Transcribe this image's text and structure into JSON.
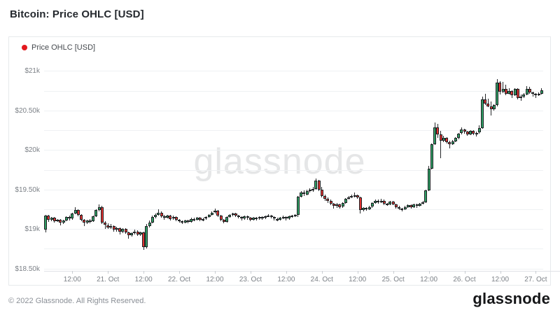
{
  "page": {
    "title": "Bitcoin: Price OHLC [USD]"
  },
  "legend": {
    "label": "Price OHLC [USD]",
    "dot_color": "#e3191f"
  },
  "watermark": "glassnode",
  "footer": {
    "copyright": "© 2022 Glassnode. All Rights Reserved.",
    "brand": "glassnode"
  },
  "chart_data": {
    "type": "candlestick",
    "title": "Bitcoin: Price OHLC [USD]",
    "series_name": "Price OHLC [USD]",
    "unit": "USD thousands",
    "interval": "1h",
    "x_start": "20. Oct 03:00",
    "x_end": "27. Oct 02:00",
    "ylim": [
      18.47,
      21.11
    ],
    "grid_step": 0.25,
    "legend_position": "top-left",
    "y_ticks": [
      {
        "value": 21.0,
        "label": "$21k"
      },
      {
        "value": 20.5,
        "label": "$20.50k"
      },
      {
        "value": 20.0,
        "label": "$20k"
      },
      {
        "value": 19.5,
        "label": "$19.50k"
      },
      {
        "value": 19.0,
        "label": "$19k"
      },
      {
        "value": 18.5,
        "label": "$18.50k"
      }
    ],
    "x_ticks": [
      {
        "index": 9,
        "label": "12:00"
      },
      {
        "index": 21,
        "label": "21. Oct"
      },
      {
        "index": 33,
        "label": "12:00"
      },
      {
        "index": 45,
        "label": "22. Oct"
      },
      {
        "index": 57,
        "label": "12:00"
      },
      {
        "index": 69,
        "label": "23. Oct"
      },
      {
        "index": 81,
        "label": "12:00"
      },
      {
        "index": 93,
        "label": "24. Oct"
      },
      {
        "index": 105,
        "label": "12:00"
      },
      {
        "index": 117,
        "label": "25. Oct"
      },
      {
        "index": 129,
        "label": "12:00"
      },
      {
        "index": 141,
        "label": "26. Oct"
      },
      {
        "index": 153,
        "label": "12:00"
      },
      {
        "index": 165,
        "label": "27. Oct"
      }
    ],
    "colors": {
      "up": "#2f9e64",
      "down": "#e03131",
      "outline": "#202325",
      "grid": "#eff1f3",
      "axis": "#dfe2e6",
      "tick_text": "#7c8187"
    },
    "candles": [
      [
        18.99,
        19.18,
        18.96,
        19.17
      ],
      [
        19.17,
        19.18,
        19.09,
        19.12
      ],
      [
        19.12,
        19.15,
        19.1,
        19.14
      ],
      [
        19.14,
        19.15,
        19.08,
        19.1
      ],
      [
        19.1,
        19.13,
        19.09,
        19.12
      ],
      [
        19.12,
        19.13,
        19.05,
        19.08
      ],
      [
        19.08,
        19.12,
        19.06,
        19.11
      ],
      [
        19.11,
        19.16,
        19.1,
        19.15
      ],
      [
        19.15,
        19.17,
        19.11,
        19.13
      ],
      [
        19.13,
        19.21,
        19.12,
        19.2
      ],
      [
        19.2,
        19.28,
        19.19,
        19.24
      ],
      [
        19.24,
        19.25,
        19.16,
        19.18
      ],
      [
        19.18,
        19.19,
        19.1,
        19.12
      ],
      [
        19.12,
        19.13,
        19.04,
        19.08
      ],
      [
        19.08,
        19.12,
        19.06,
        19.11
      ],
      [
        19.11,
        19.13,
        19.07,
        19.1
      ],
      [
        19.1,
        19.17,
        19.09,
        19.16
      ],
      [
        19.16,
        19.25,
        19.15,
        19.24
      ],
      [
        19.24,
        19.31,
        19.22,
        19.28
      ],
      [
        19.28,
        19.29,
        19.06,
        19.08
      ],
      [
        19.08,
        19.1,
        19.0,
        19.05
      ],
      [
        19.05,
        19.07,
        19.0,
        19.02
      ],
      [
        19.02,
        19.06,
        19.0,
        19.04
      ],
      [
        19.04,
        19.05,
        18.97,
        18.99
      ],
      [
        18.99,
        19.03,
        18.97,
        19.01
      ],
      [
        19.01,
        19.02,
        18.93,
        18.97
      ],
      [
        18.97,
        19.01,
        18.95,
        19.0
      ],
      [
        19.0,
        19.01,
        18.94,
        18.96
      ],
      [
        18.96,
        18.97,
        18.88,
        18.92
      ],
      [
        18.92,
        18.96,
        18.9,
        18.95
      ],
      [
        18.95,
        18.99,
        18.93,
        18.97
      ],
      [
        18.97,
        18.98,
        18.91,
        18.93
      ],
      [
        18.93,
        18.97,
        18.91,
        18.96
      ],
      [
        18.96,
        18.97,
        18.74,
        18.77
      ],
      [
        18.77,
        19.06,
        18.75,
        19.04
      ],
      [
        19.04,
        19.11,
        19.02,
        19.08
      ],
      [
        19.08,
        19.17,
        19.07,
        19.15
      ],
      [
        19.15,
        19.2,
        19.13,
        19.18
      ],
      [
        19.18,
        19.25,
        19.17,
        19.21
      ],
      [
        19.21,
        19.22,
        19.14,
        19.16
      ],
      [
        19.16,
        19.18,
        19.12,
        19.14
      ],
      [
        19.14,
        19.18,
        19.13,
        19.17
      ],
      [
        19.17,
        19.18,
        19.11,
        19.13
      ],
      [
        19.13,
        19.17,
        19.12,
        19.15
      ],
      [
        19.15,
        19.16,
        19.1,
        19.12
      ],
      [
        19.12,
        19.13,
        19.08,
        19.1
      ],
      [
        19.1,
        19.11,
        19.06,
        19.08
      ],
      [
        19.08,
        19.12,
        19.07,
        19.11
      ],
      [
        19.11,
        19.12,
        19.07,
        19.09
      ],
      [
        19.09,
        19.14,
        19.08,
        19.13
      ],
      [
        19.13,
        19.14,
        19.1,
        19.12
      ],
      [
        19.12,
        19.15,
        19.11,
        19.14
      ],
      [
        19.14,
        19.15,
        19.1,
        19.12
      ],
      [
        19.12,
        19.14,
        19.1,
        19.13
      ],
      [
        19.13,
        19.16,
        19.12,
        19.15
      ],
      [
        19.15,
        19.19,
        19.14,
        19.18
      ],
      [
        19.18,
        19.22,
        19.17,
        19.21
      ],
      [
        19.21,
        19.26,
        19.2,
        19.23
      ],
      [
        19.23,
        19.24,
        19.15,
        19.17
      ],
      [
        19.17,
        19.18,
        19.1,
        19.12
      ],
      [
        19.12,
        19.13,
        19.07,
        19.09
      ],
      [
        19.09,
        19.16,
        19.08,
        19.15
      ],
      [
        19.15,
        19.19,
        19.14,
        19.18
      ],
      [
        19.18,
        19.21,
        19.16,
        19.2
      ],
      [
        19.2,
        19.21,
        19.15,
        19.17
      ],
      [
        19.17,
        19.18,
        19.13,
        19.15
      ],
      [
        19.15,
        19.16,
        19.11,
        19.13
      ],
      [
        19.13,
        19.17,
        19.12,
        19.16
      ],
      [
        19.16,
        19.17,
        19.12,
        19.14
      ],
      [
        19.14,
        19.15,
        19.1,
        19.12
      ],
      [
        19.12,
        19.15,
        19.11,
        19.14
      ],
      [
        19.14,
        19.15,
        19.11,
        19.13
      ],
      [
        19.13,
        19.16,
        19.12,
        19.15
      ],
      [
        19.15,
        19.16,
        19.12,
        19.14
      ],
      [
        19.14,
        19.17,
        19.13,
        19.16
      ],
      [
        19.16,
        19.19,
        19.15,
        19.17
      ],
      [
        19.17,
        19.18,
        19.13,
        19.15
      ],
      [
        19.15,
        19.16,
        19.11,
        19.13
      ],
      [
        19.13,
        19.14,
        19.1,
        19.12
      ],
      [
        19.12,
        19.15,
        19.11,
        19.14
      ],
      [
        19.14,
        19.17,
        19.13,
        19.15
      ],
      [
        19.15,
        19.16,
        19.11,
        19.13
      ],
      [
        19.13,
        19.17,
        19.12,
        19.16
      ],
      [
        19.16,
        19.18,
        19.14,
        19.17
      ],
      [
        19.17,
        19.19,
        19.15,
        19.18
      ],
      [
        19.18,
        19.42,
        19.15,
        19.41
      ],
      [
        19.41,
        19.48,
        19.4,
        19.46
      ],
      [
        19.46,
        19.49,
        19.42,
        19.44
      ],
      [
        19.44,
        19.5,
        19.43,
        19.48
      ],
      [
        19.48,
        19.52,
        19.46,
        19.5
      ],
      [
        19.5,
        19.53,
        19.47,
        19.51
      ],
      [
        19.51,
        19.64,
        19.5,
        19.61
      ],
      [
        19.61,
        19.62,
        19.48,
        19.5
      ],
      [
        19.5,
        19.53,
        19.4,
        19.42
      ],
      [
        19.42,
        19.44,
        19.36,
        19.38
      ],
      [
        19.38,
        19.4,
        19.33,
        19.36
      ],
      [
        19.36,
        19.37,
        19.3,
        19.32
      ],
      [
        19.32,
        19.33,
        19.26,
        19.29
      ],
      [
        19.29,
        19.33,
        19.27,
        19.31
      ],
      [
        19.31,
        19.32,
        19.26,
        19.28
      ],
      [
        19.28,
        19.34,
        19.27,
        19.33
      ],
      [
        19.33,
        19.39,
        19.32,
        19.38
      ],
      [
        19.38,
        19.42,
        19.37,
        19.4
      ],
      [
        19.4,
        19.44,
        19.39,
        19.42
      ],
      [
        19.42,
        19.46,
        19.4,
        19.43
      ],
      [
        19.43,
        19.44,
        19.38,
        19.4
      ],
      [
        19.4,
        19.41,
        19.2,
        19.24
      ],
      [
        19.24,
        19.28,
        19.22,
        19.27
      ],
      [
        19.27,
        19.28,
        19.23,
        19.25
      ],
      [
        19.25,
        19.29,
        19.24,
        19.28
      ],
      [
        19.28,
        19.34,
        19.27,
        19.33
      ],
      [
        19.33,
        19.37,
        19.32,
        19.36
      ],
      [
        19.36,
        19.37,
        19.32,
        19.34
      ],
      [
        19.34,
        19.38,
        19.33,
        19.36
      ],
      [
        19.36,
        19.37,
        19.3,
        19.32
      ],
      [
        19.32,
        19.33,
        19.29,
        19.31
      ],
      [
        19.31,
        19.36,
        19.3,
        19.35
      ],
      [
        19.35,
        19.36,
        19.3,
        19.31
      ],
      [
        19.31,
        19.32,
        19.26,
        19.28
      ],
      [
        19.28,
        19.29,
        19.24,
        19.26
      ],
      [
        19.26,
        19.27,
        19.22,
        19.25
      ],
      [
        19.25,
        19.29,
        19.24,
        19.28
      ],
      [
        19.28,
        19.31,
        19.27,
        19.3
      ],
      [
        19.3,
        19.31,
        19.26,
        19.28
      ],
      [
        19.28,
        19.32,
        19.27,
        19.31
      ],
      [
        19.31,
        19.32,
        19.27,
        19.29
      ],
      [
        19.29,
        19.33,
        19.28,
        19.32
      ],
      [
        19.32,
        19.36,
        19.31,
        19.34
      ],
      [
        19.34,
        19.5,
        19.33,
        19.49
      ],
      [
        19.49,
        19.8,
        19.48,
        19.76
      ],
      [
        19.76,
        20.08,
        19.75,
        20.07
      ],
      [
        20.07,
        20.35,
        20.06,
        20.29
      ],
      [
        20.29,
        20.33,
        20.15,
        20.2
      ],
      [
        20.2,
        20.24,
        19.9,
        20.12
      ],
      [
        20.12,
        20.18,
        20.1,
        20.15
      ],
      [
        20.15,
        20.16,
        20.08,
        20.1
      ],
      [
        20.1,
        20.12,
        20.02,
        20.07
      ],
      [
        20.07,
        20.13,
        20.06,
        20.11
      ],
      [
        20.11,
        20.16,
        20.1,
        20.15
      ],
      [
        20.15,
        20.22,
        20.14,
        20.21
      ],
      [
        20.21,
        20.29,
        20.2,
        20.26
      ],
      [
        20.26,
        20.27,
        20.21,
        20.23
      ],
      [
        20.23,
        20.24,
        20.18,
        20.2
      ],
      [
        20.2,
        20.25,
        20.19,
        20.24
      ],
      [
        20.24,
        20.25,
        20.19,
        20.21
      ],
      [
        20.21,
        20.23,
        20.17,
        20.22
      ],
      [
        20.22,
        20.31,
        20.21,
        20.28
      ],
      [
        20.28,
        20.68,
        20.27,
        20.64
      ],
      [
        20.64,
        20.71,
        20.57,
        20.59
      ],
      [
        20.59,
        20.65,
        20.54,
        20.55
      ],
      [
        20.55,
        20.61,
        20.44,
        20.52
      ],
      [
        20.52,
        20.58,
        20.5,
        20.57
      ],
      [
        20.57,
        20.9,
        20.55,
        20.85
      ],
      [
        20.85,
        20.87,
        20.7,
        20.74
      ],
      [
        20.74,
        20.86,
        20.72,
        20.77
      ],
      [
        20.77,
        20.83,
        20.69,
        20.71
      ],
      [
        20.71,
        20.78,
        20.7,
        20.75
      ],
      [
        20.75,
        20.76,
        20.66,
        20.69
      ],
      [
        20.69,
        20.78,
        20.68,
        20.77
      ],
      [
        20.77,
        20.78,
        20.64,
        20.66
      ],
      [
        20.66,
        20.7,
        20.62,
        20.68
      ],
      [
        20.68,
        20.72,
        20.66,
        20.7
      ],
      [
        20.7,
        20.81,
        20.69,
        20.77
      ],
      [
        20.77,
        20.8,
        20.71,
        20.73
      ],
      [
        20.73,
        20.74,
        20.68,
        20.71
      ],
      [
        20.71,
        20.72,
        20.66,
        20.69
      ],
      [
        20.69,
        20.73,
        20.68,
        20.71
      ],
      [
        20.71,
        20.78,
        20.7,
        20.76
      ]
    ]
  }
}
